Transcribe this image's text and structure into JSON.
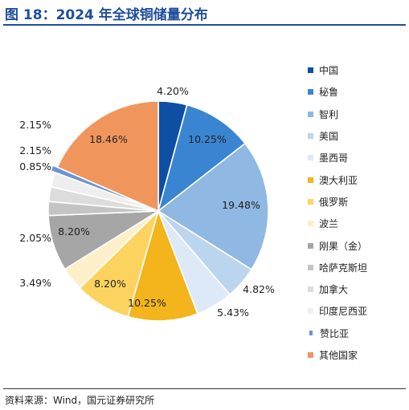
{
  "title": "图 18：2024 年全球铜储量分布",
  "source": "资料来源：Wind，国元证券研究所",
  "chart_data": {
    "type": "pie",
    "legend_position": "right",
    "slices": [
      {
        "name": "中国",
        "value": 4.2,
        "label": "4.20%",
        "color": "#0d4fa3"
      },
      {
        "name": "秘鲁",
        "value": 10.25,
        "label": "10.25%",
        "color": "#3a85d1"
      },
      {
        "name": "智利",
        "value": 19.48,
        "label": "19.48%",
        "color": "#8fb8e2"
      },
      {
        "name": "美国",
        "value": 4.82,
        "label": "4.82%",
        "color": "#bcd5ee"
      },
      {
        "name": "墨西哥",
        "value": 5.43,
        "label": "5.43%",
        "color": "#dde9f6"
      },
      {
        "name": "澳大利亚",
        "value": 10.25,
        "label": "10.25%",
        "color": "#f3b41c"
      },
      {
        "name": "俄罗斯",
        "value": 8.2,
        "label": "8.20%",
        "color": "#fcd35f"
      },
      {
        "name": "波兰",
        "value": 3.49,
        "label": "3.49%",
        "color": "#fdefc9"
      },
      {
        "name": "刚果（金）",
        "value": 8.2,
        "label": "8.20%",
        "color": "#a6a6a6"
      },
      {
        "name": "哈萨克斯坦",
        "value": 2.05,
        "label": "2.05%",
        "color": "#c4c4c4"
      },
      {
        "name": "加拿大",
        "value": 2.15,
        "label": "2.15%",
        "color": "#dcdcdc"
      },
      {
        "name": "印度尼西亚",
        "value": 2.15,
        "label": "2.15%",
        "color": "#eeeeee"
      },
      {
        "name": "赞比亚",
        "value": 0.85,
        "label": "0.85%",
        "color": "#6a94d6"
      },
      {
        "name": "其他国家",
        "value": 18.46,
        "label": "18.46%",
        "color": "#f0965c"
      }
    ]
  }
}
